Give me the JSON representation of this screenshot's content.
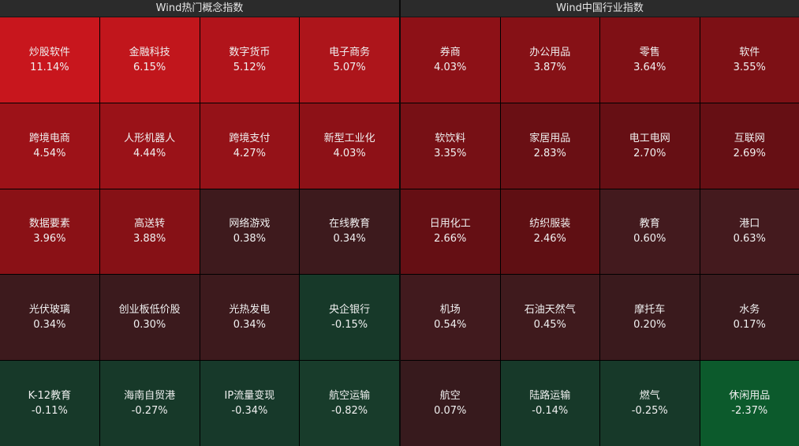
{
  "left": {
    "title": "Wind热门概念指数",
    "cells": [
      {
        "name": "炒股软件",
        "pct": "11.14%",
        "color": "#c8161d"
      },
      {
        "name": "金融科技",
        "pct": "6.15%",
        "color": "#c1161c"
      },
      {
        "name": "数字货币",
        "pct": "5.12%",
        "color": "#b1141b"
      },
      {
        "name": "电子商务",
        "pct": "5.07%",
        "color": "#ad151b"
      },
      {
        "name": "跨境电商",
        "pct": "4.54%",
        "color": "#9d1218"
      },
      {
        "name": "人形机器人",
        "pct": "4.44%",
        "color": "#9a1218"
      },
      {
        "name": "跨境支付",
        "pct": "4.27%",
        "color": "#951218"
      },
      {
        "name": "新型工业化",
        "pct": "4.03%",
        "color": "#8d1117"
      },
      {
        "name": "数据要素",
        "pct": "3.96%",
        "color": "#8a1116"
      },
      {
        "name": "高送转",
        "pct": "3.88%",
        "color": "#861116"
      },
      {
        "name": "网络游戏",
        "pct": "0.38%",
        "color": "#3e1a1d"
      },
      {
        "name": "在线教育",
        "pct": "0.34%",
        "color": "#3d1a1d"
      },
      {
        "name": "光伏玻璃",
        "pct": "0.34%",
        "color": "#3d1a1d"
      },
      {
        "name": "创业板低价股",
        "pct": "0.30%",
        "color": "#3b1a1d"
      },
      {
        "name": "光热发电",
        "pct": "0.34%",
        "color": "#3d1a1d"
      },
      {
        "name": "央企银行",
        "pct": "-0.15%",
        "color": "#173929"
      },
      {
        "name": "K-12教育",
        "pct": "-0.11%",
        "color": "#173929"
      },
      {
        "name": "海南自贸港",
        "pct": "-0.27%",
        "color": "#173929"
      },
      {
        "name": "IP流量变现",
        "pct": "-0.34%",
        "color": "#17392a"
      },
      {
        "name": "航空运输",
        "pct": "-0.82%",
        "color": "#183c2b"
      }
    ]
  },
  "right": {
    "title": "Wind中国行业指数",
    "cells": [
      {
        "name": "券商",
        "pct": "4.03%",
        "color": "#8d1117"
      },
      {
        "name": "办公用品",
        "pct": "3.87%",
        "color": "#861116"
      },
      {
        "name": "零售",
        "pct": "3.64%",
        "color": "#7f1015"
      },
      {
        "name": "软件",
        "pct": "3.55%",
        "color": "#7d1015"
      },
      {
        "name": "软饮料",
        "pct": "3.35%",
        "color": "#771015"
      },
      {
        "name": "家居用品",
        "pct": "2.83%",
        "color": "#6a0f14"
      },
      {
        "name": "电工电网",
        "pct": "2.70%",
        "color": "#660f14"
      },
      {
        "name": "互联网",
        "pct": "2.69%",
        "color": "#660f14"
      },
      {
        "name": "日用化工",
        "pct": "2.66%",
        "color": "#650f14"
      },
      {
        "name": "纺织服装",
        "pct": "2.46%",
        "color": "#5f0f13"
      },
      {
        "name": "教育",
        "pct": "0.60%",
        "color": "#431a1e"
      },
      {
        "name": "港口",
        "pct": "0.63%",
        "color": "#441a1e"
      },
      {
        "name": "机场",
        "pct": "0.54%",
        "color": "#411a1e"
      },
      {
        "name": "石油天然气",
        "pct": "0.45%",
        "color": "#3f1a1d"
      },
      {
        "name": "摩托车",
        "pct": "0.20%",
        "color": "#3a1a1d"
      },
      {
        "name": "水务",
        "pct": "0.17%",
        "color": "#391a1d"
      },
      {
        "name": "航空",
        "pct": "0.07%",
        "color": "#371a1d"
      },
      {
        "name": "陆路运输",
        "pct": "-0.14%",
        "color": "#173929"
      },
      {
        "name": "燃气",
        "pct": "-0.25%",
        "color": "#173929"
      },
      {
        "name": "休闲用品",
        "pct": "-2.37%",
        "color": "#0c5a2c"
      }
    ]
  }
}
